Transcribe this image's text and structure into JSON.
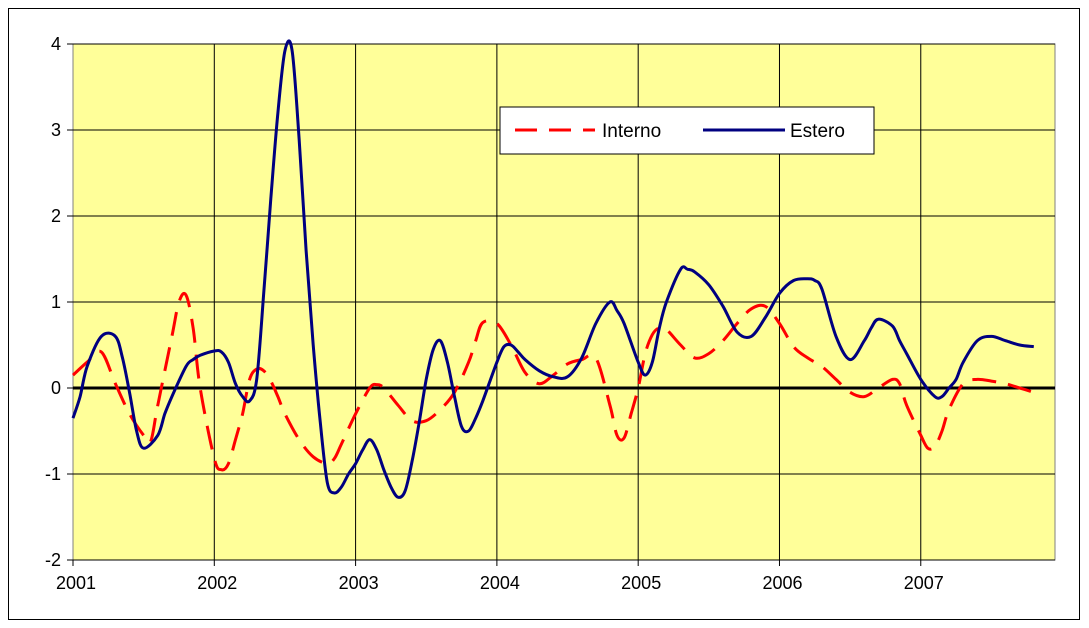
{
  "chart_data": {
    "type": "line",
    "title": "",
    "xlabel": "",
    "ylabel": "",
    "xlim": [
      2001,
      2007.95
    ],
    "ylim": [
      -2,
      4
    ],
    "y_ticks": [
      "-2",
      "-1",
      "0",
      "1",
      "2",
      "3",
      "4"
    ],
    "x_ticks": [
      "2001",
      "2002",
      "2003",
      "2004",
      "2005",
      "2006",
      "2007"
    ],
    "grid": true,
    "legend_position": "top-right",
    "colors": {
      "plot_background": "#FFFF99",
      "zero_line": "#000000"
    },
    "series": [
      {
        "name": "Interno",
        "color": "#FF0000",
        "style": "dashed",
        "x": [
          2001.0,
          2001.1,
          2001.2,
          2001.3,
          2001.4,
          2001.5,
          2001.55,
          2001.6,
          2001.7,
          2001.75,
          2001.8,
          2001.85,
          2001.9,
          2002.0,
          2002.05,
          2002.1,
          2002.15,
          2002.2,
          2002.25,
          2002.3,
          2002.35,
          2002.4,
          2002.45,
          2002.5,
          2002.6,
          2002.7,
          2002.8,
          2002.85,
          2002.9,
          2003.0,
          2003.1,
          2003.15,
          2003.2,
          2003.3,
          2003.4,
          2003.5,
          2003.6,
          2003.7,
          2003.8,
          2003.85,
          2003.9,
          2004.0,
          2004.1,
          2004.2,
          2004.3,
          2004.4,
          2004.5,
          2004.6,
          2004.7,
          2004.8,
          2004.85,
          2004.9,
          2004.95,
          2005.0,
          2005.05,
          2005.1,
          2005.15,
          2005.2,
          2005.3,
          2005.4,
          2005.5,
          2005.6,
          2005.7,
          2005.8,
          2005.9,
          2006.0,
          2006.1,
          2006.2,
          2006.3,
          2006.4,
          2006.5,
          2006.6,
          2006.7,
          2006.8,
          2006.85,
          2006.9,
          2007.0,
          2007.05,
          2007.1,
          2007.15,
          2007.2,
          2007.3,
          2007.4,
          2007.5,
          2007.6,
          2007.7,
          2007.8
        ],
        "values": [
          0.15,
          0.3,
          0.42,
          0.05,
          -0.3,
          -0.55,
          -0.62,
          -0.2,
          0.6,
          1.0,
          1.08,
          0.7,
          0.0,
          -0.82,
          -0.95,
          -0.88,
          -0.6,
          -0.3,
          0.1,
          0.22,
          0.2,
          0.08,
          -0.1,
          -0.3,
          -0.6,
          -0.8,
          -0.88,
          -0.82,
          -0.65,
          -0.3,
          0.0,
          0.04,
          0.0,
          -0.2,
          -0.38,
          -0.38,
          -0.25,
          -0.05,
          0.3,
          0.55,
          0.76,
          0.75,
          0.5,
          0.18,
          0.05,
          0.15,
          0.28,
          0.33,
          0.35,
          -0.2,
          -0.55,
          -0.58,
          -0.3,
          0.0,
          0.4,
          0.62,
          0.7,
          0.68,
          0.5,
          0.35,
          0.4,
          0.55,
          0.75,
          0.92,
          0.95,
          0.75,
          0.48,
          0.35,
          0.25,
          0.1,
          -0.05,
          -0.1,
          0.0,
          0.1,
          0.05,
          -0.2,
          -0.55,
          -0.7,
          -0.68,
          -0.5,
          -0.25,
          0.05,
          0.1,
          0.08,
          0.05,
          0.0,
          -0.05
        ]
      },
      {
        "name": "Estero",
        "color": "#000080",
        "style": "solid",
        "x": [
          2001.0,
          2001.05,
          2001.1,
          2001.2,
          2001.3,
          2001.35,
          2001.4,
          2001.45,
          2001.5,
          2001.6,
          2001.65,
          2001.7,
          2001.8,
          2001.85,
          2001.9,
          2002.0,
          2002.05,
          2002.1,
          2002.15,
          2002.2,
          2002.25,
          2002.3,
          2002.35,
          2002.4,
          2002.45,
          2002.5,
          2002.55,
          2002.6,
          2002.65,
          2002.7,
          2002.75,
          2002.8,
          2002.85,
          2002.9,
          2002.95,
          2003.0,
          2003.05,
          2003.1,
          2003.15,
          2003.2,
          2003.25,
          2003.3,
          2003.35,
          2003.4,
          2003.45,
          2003.5,
          2003.55,
          2003.6,
          2003.65,
          2003.7,
          2003.75,
          2003.8,
          2003.85,
          2003.9,
          2004.0,
          2004.05,
          2004.1,
          2004.15,
          2004.2,
          2004.3,
          2004.4,
          2004.5,
          2004.6,
          2004.7,
          2004.8,
          2004.85,
          2004.9,
          2005.0,
          2005.05,
          2005.1,
          2005.15,
          2005.2,
          2005.3,
          2005.35,
          2005.4,
          2005.5,
          2005.6,
          2005.7,
          2005.8,
          2005.9,
          2006.0,
          2006.1,
          2006.2,
          2006.25,
          2006.3,
          2006.4,
          2006.5,
          2006.6,
          2006.65,
          2006.7,
          2006.8,
          2006.85,
          2006.9,
          2007.0,
          2007.1,
          2007.15,
          2007.2,
          2007.25,
          2007.3,
          2007.4,
          2007.5,
          2007.6,
          2007.7,
          2007.8
        ],
        "values": [
          -0.35,
          -0.1,
          0.25,
          0.6,
          0.6,
          0.35,
          -0.05,
          -0.5,
          -0.7,
          -0.55,
          -0.3,
          -0.1,
          0.25,
          0.33,
          0.38,
          0.43,
          0.42,
          0.3,
          0.05,
          -0.1,
          -0.15,
          0.1,
          1.1,
          2.2,
          3.2,
          3.92,
          3.93,
          2.9,
          1.6,
          0.5,
          -0.4,
          -1.1,
          -1.22,
          -1.15,
          -1.0,
          -0.88,
          -0.72,
          -0.6,
          -0.72,
          -0.95,
          -1.15,
          -1.27,
          -1.2,
          -0.85,
          -0.4,
          0.1,
          0.45,
          0.55,
          0.3,
          -0.1,
          -0.45,
          -0.5,
          -0.35,
          -0.15,
          0.3,
          0.48,
          0.5,
          0.42,
          0.33,
          0.2,
          0.13,
          0.13,
          0.35,
          0.75,
          1.0,
          0.9,
          0.75,
          0.3,
          0.15,
          0.3,
          0.7,
          1.0,
          1.38,
          1.38,
          1.35,
          1.2,
          0.95,
          0.65,
          0.6,
          0.82,
          1.1,
          1.25,
          1.27,
          1.25,
          1.15,
          0.6,
          0.33,
          0.55,
          0.7,
          0.8,
          0.72,
          0.55,
          0.4,
          0.1,
          -0.1,
          -0.1,
          0.0,
          0.1,
          0.3,
          0.55,
          0.6,
          0.55,
          0.5,
          0.48
        ]
      }
    ]
  }
}
